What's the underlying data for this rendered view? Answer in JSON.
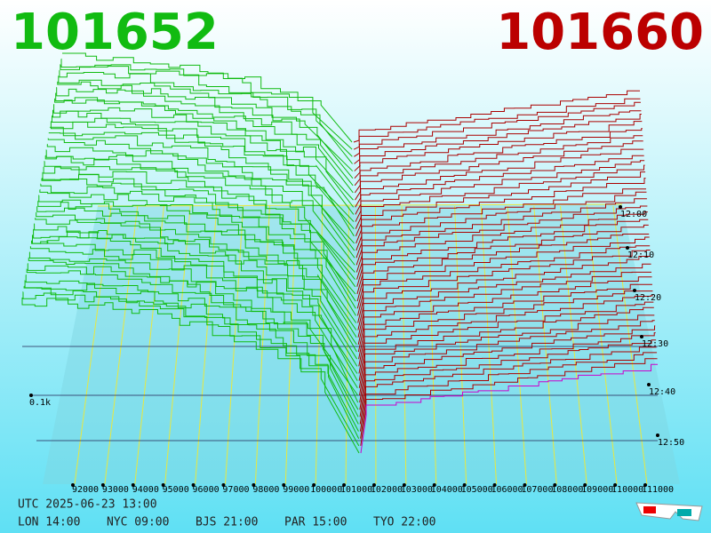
{
  "header": {
    "bid": "101652",
    "ask": "101660"
  },
  "price_axis": [
    "92000",
    "93000",
    "94000",
    "95000",
    "96000",
    "97000",
    "98000",
    "99000",
    "100000",
    "101000",
    "102000",
    "103000",
    "104000",
    "105000",
    "106000",
    "107000",
    "108000",
    "109000",
    "110000",
    "111000"
  ],
  "time_axis": [
    "12:00",
    "12:10",
    "12:20",
    "12:30",
    "12:40",
    "12:50"
  ],
  "depth_label": "0.1k",
  "footer": {
    "utc": "UTC 2025-06-23 13:00",
    "clocks": [
      "LON 14:00",
      "NYC 09:00",
      "BJS 21:00",
      "PAR 15:00",
      "TYO 22:00"
    ]
  }
}
